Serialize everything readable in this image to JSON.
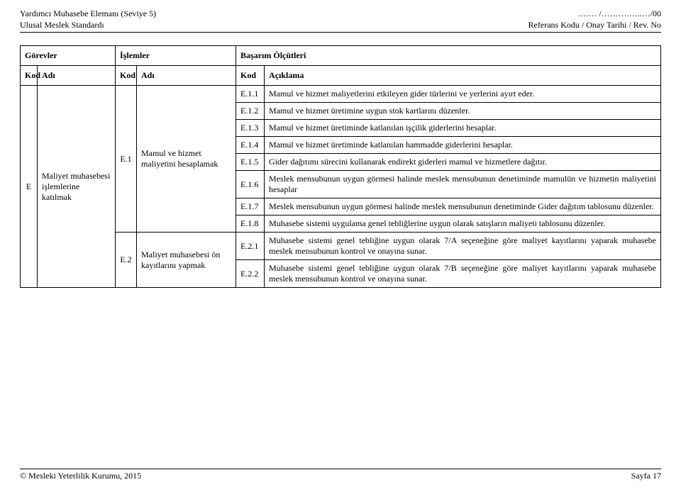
{
  "header": {
    "left_line1": "Yardımcı Muhasebe Elemanı (Seviye 5)",
    "left_line2": "Ulusal Meslek Standardı",
    "right_line1": "….… /……….…..…/00",
    "right_line2": "Referans Kodu / Onay Tarihi / Rev. No"
  },
  "table": {
    "group_headers": {
      "gorevler": "Görevler",
      "islemler": "İşlemler",
      "basarim": "Başarım Ölçütleri"
    },
    "col_headers": {
      "kod": "Kod",
      "adi": "Adı",
      "aciklama": "Açıklama"
    },
    "gorev": {
      "kod": "E",
      "adi": "Maliyet muhasebesi işlemlerine katılmak"
    },
    "islemler": [
      {
        "kod": "E.1",
        "adi": "Mamul ve hizmet maliyetini hesaplamak"
      },
      {
        "kod": "E.2",
        "adi": "Maliyet muhasebesi ön kayıtlarını yapmak"
      }
    ],
    "olcutler": [
      {
        "kod": "E.1.1",
        "aciklama": "Mamul ve hizmet maliyetlerini etkileyen gider türlerini ve yerlerini ayırt eder."
      },
      {
        "kod": "E.1.2",
        "aciklama": "Mamul ve hizmet üretimine uygun stok kartlarını düzenler."
      },
      {
        "kod": "E.1.3",
        "aciklama": "Mamul ve hizmet üretiminde katlanılan işçilik giderlerini hesaplar."
      },
      {
        "kod": "E.1.4",
        "aciklama": "Mamul ve hizmet üretiminde katlanılan hammadde giderlerini hesaplar."
      },
      {
        "kod": "E.1.5",
        "aciklama": "Gider dağıtımı sürecini kullanarak endirekt giderleri mamul ve hizmetlere dağıtır."
      },
      {
        "kod": "E.1.6",
        "aciklama": "Meslek mensubunun uygun görmesi halinde meslek mensubunun denetiminde mamulün ve hizmetin maliyetini hesaplar"
      },
      {
        "kod": "E.1.7",
        "aciklama": "Meslek mensubunun uygun görmesi halinde meslek mensubunun denetiminde Gider dağıtım tablosunu düzenler."
      },
      {
        "kod": "E.1.8",
        "aciklama": "Muhasebe sistemi uygulama genel tebliğlerine uygun olarak satışların maliyeti tablosunu düzenler."
      },
      {
        "kod": "E.2.1",
        "aciklama": "Muhasebe sistemi genel tebliğine uygun olarak 7/A seçeneğine göre maliyet kayıtlarını yaparak muhasebe meslek mensubunun kontrol ve onayına sunar."
      },
      {
        "kod": "E.2.2",
        "aciklama": "Muhasebe sistemi genel tebliğine uygun olarak 7/B seçeneğine göre maliyet kayıtlarını yaparak muhasebe meslek mensubunun kontrol ve onayına sunar."
      }
    ]
  },
  "footer": {
    "left": "© Mesleki Yeterlilik Kurumu, 2015",
    "right": "Sayfa 17"
  }
}
